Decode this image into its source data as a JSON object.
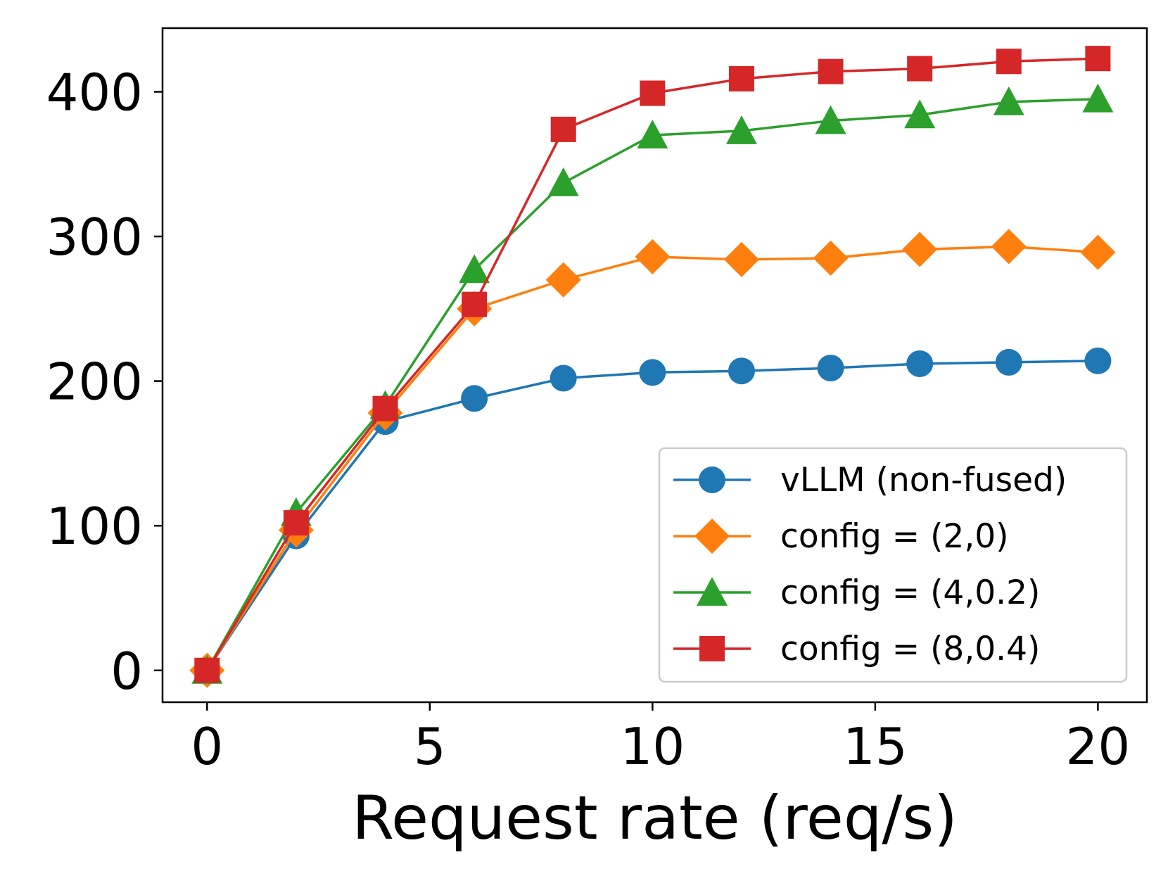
{
  "chart_data": {
    "type": "line",
    "title": "",
    "xlabel": "Request rate (req/s)",
    "ylabel": "",
    "xlim": [
      -1,
      21.1
    ],
    "ylim": [
      -22,
      444
    ],
    "xticks": [
      0,
      5,
      10,
      15,
      20
    ],
    "yticks": [
      0,
      100,
      200,
      300,
      400
    ],
    "grid": false,
    "legend_position": "lower-right",
    "x": [
      0,
      2,
      4,
      6,
      8,
      10,
      12,
      14,
      16,
      18,
      20
    ],
    "series": [
      {
        "name": "vLLM (non-fused)",
        "color": "#1f77b4",
        "marker": "circle",
        "values": [
          0,
          93,
          172,
          188,
          202,
          206,
          207,
          209,
          212,
          213,
          214
        ]
      },
      {
        "name": "config = (2,0)",
        "color": "#ff7f0e",
        "marker": "diamond",
        "values": [
          0,
          97,
          178,
          250,
          270,
          286,
          284,
          285,
          291,
          293,
          289
        ]
      },
      {
        "name": "config = (4,0.2)",
        "color": "#2ca02c",
        "marker": "triangle",
        "values": [
          0,
          109,
          183,
          277,
          337,
          370,
          373,
          380,
          384,
          393,
          395
        ]
      },
      {
        "name": "config = (8,0.4)",
        "color": "#d62728",
        "marker": "square",
        "values": [
          0,
          102,
          181,
          253,
          374,
          399,
          409,
          414,
          416,
          421,
          423
        ]
      }
    ]
  }
}
